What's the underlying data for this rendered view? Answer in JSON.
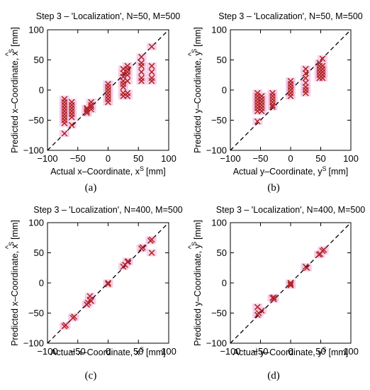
{
  "chart_data": [
    {
      "panel_label": "(a)",
      "type": "scatter",
      "title": "Step 3 – 'Localization', N=50, M=500",
      "xlabel": "Actual x–Coordinate, x",
      "xlabel_sup": "S",
      "xlabel_unit": "[mm]",
      "ylabel": "Predicted x–Coordinate, x",
      "ylabel_sup": "S",
      "ylabel_hat": "^",
      "ylabel_unit": "[mm]",
      "xlim": [
        -100,
        100
      ],
      "ylim": [
        -100,
        100
      ],
      "xticks": [
        -100,
        -50,
        0,
        50,
        100
      ],
      "yticks": [
        -100,
        -50,
        0,
        50,
        100
      ],
      "x_tick_labels": [
        "−100",
        "−50",
        "0",
        "50",
        "100"
      ],
      "y_tick_labels": [
        "−100",
        "−50",
        "0",
        "50",
        "100"
      ],
      "reference_line": "y = x (dashed)",
      "marker_color": "#b22222",
      "halo_color": "#f3c6e6",
      "points": [
        {
          "x": -72,
          "y": -72
        },
        {
          "x": -72,
          "y": -55
        },
        {
          "x": -72,
          "y": -50
        },
        {
          "x": -72,
          "y": -45
        },
        {
          "x": -72,
          "y": -40
        },
        {
          "x": -72,
          "y": -35
        },
        {
          "x": -72,
          "y": -30
        },
        {
          "x": -72,
          "y": -25
        },
        {
          "x": -72,
          "y": -20
        },
        {
          "x": -72,
          "y": -15
        },
        {
          "x": -60,
          "y": -58
        },
        {
          "x": -60,
          "y": -45
        },
        {
          "x": -60,
          "y": -40
        },
        {
          "x": -60,
          "y": -35
        },
        {
          "x": -60,
          "y": -30
        },
        {
          "x": -60,
          "y": -25
        },
        {
          "x": -60,
          "y": -20
        },
        {
          "x": -35,
          "y": -38
        },
        {
          "x": -35,
          "y": -35
        },
        {
          "x": -35,
          "y": -32
        },
        {
          "x": -35,
          "y": -30
        },
        {
          "x": -28,
          "y": -32
        },
        {
          "x": -28,
          "y": -28
        },
        {
          "x": -28,
          "y": -25
        },
        {
          "x": -28,
          "y": -20
        },
        {
          "x": 0,
          "y": 10
        },
        {
          "x": 0,
          "y": 5
        },
        {
          "x": 0,
          "y": 0
        },
        {
          "x": 0,
          "y": -5
        },
        {
          "x": 0,
          "y": -10
        },
        {
          "x": 0,
          "y": -15
        },
        {
          "x": 0,
          "y": -20
        },
        {
          "x": 25,
          "y": 35
        },
        {
          "x": 25,
          "y": 28
        },
        {
          "x": 25,
          "y": 22
        },
        {
          "x": 25,
          "y": 15
        },
        {
          "x": 25,
          "y": 10
        },
        {
          "x": 25,
          "y": 5
        },
        {
          "x": 25,
          "y": -5
        },
        {
          "x": 25,
          "y": -10
        },
        {
          "x": 32,
          "y": 40
        },
        {
          "x": 32,
          "y": 35
        },
        {
          "x": 32,
          "y": 30
        },
        {
          "x": 32,
          "y": 25
        },
        {
          "x": 32,
          "y": 15
        },
        {
          "x": 32,
          "y": -5
        },
        {
          "x": 32,
          "y": -10
        },
        {
          "x": 55,
          "y": 55
        },
        {
          "x": 55,
          "y": 45
        },
        {
          "x": 55,
          "y": 40
        },
        {
          "x": 55,
          "y": 30
        },
        {
          "x": 55,
          "y": 20
        },
        {
          "x": 55,
          "y": 15
        },
        {
          "x": 72,
          "y": 72
        },
        {
          "x": 72,
          "y": 40
        },
        {
          "x": 72,
          "y": 30
        },
        {
          "x": 72,
          "y": 20
        },
        {
          "x": 72,
          "y": 15
        }
      ]
    },
    {
      "panel_label": "(b)",
      "type": "scatter",
      "title": "Step 3 – 'Localization', N=50, M=500",
      "xlabel": "Actual y–Coordinate, y",
      "xlabel_sup": "S",
      "xlabel_unit": "[mm]",
      "ylabel": "Predicted y–Coordinate, y",
      "ylabel_sup": "S",
      "ylabel_hat": "^",
      "ylabel_unit": "[mm]",
      "xlim": [
        -100,
        100
      ],
      "ylim": [
        -100,
        100
      ],
      "xticks": [
        -100,
        -50,
        0,
        50,
        100
      ],
      "yticks": [
        -100,
        -50,
        0,
        50,
        100
      ],
      "x_tick_labels": [
        "−100",
        "−50",
        "0",
        "50",
        "100"
      ],
      "y_tick_labels": [
        "−100",
        "−50",
        "0",
        "50",
        "100"
      ],
      "reference_line": "y = x (dashed)",
      "marker_color": "#b22222",
      "halo_color": "#f3c6e6",
      "points": [
        {
          "x": -55,
          "y": -52
        },
        {
          "x": -55,
          "y": -35
        },
        {
          "x": -55,
          "y": -30
        },
        {
          "x": -55,
          "y": -25
        },
        {
          "x": -55,
          "y": -20
        },
        {
          "x": -55,
          "y": -15
        },
        {
          "x": -55,
          "y": -10
        },
        {
          "x": -55,
          "y": -5
        },
        {
          "x": -48,
          "y": -35
        },
        {
          "x": -48,
          "y": -30
        },
        {
          "x": -48,
          "y": -25
        },
        {
          "x": -48,
          "y": -20
        },
        {
          "x": -48,
          "y": -15
        },
        {
          "x": -48,
          "y": -10
        },
        {
          "x": -30,
          "y": -28
        },
        {
          "x": -30,
          "y": -25
        },
        {
          "x": -30,
          "y": -20
        },
        {
          "x": -30,
          "y": -15
        },
        {
          "x": -30,
          "y": -10
        },
        {
          "x": -30,
          "y": -5
        },
        {
          "x": 0,
          "y": 15
        },
        {
          "x": 0,
          "y": 10
        },
        {
          "x": 0,
          "y": 5
        },
        {
          "x": 0,
          "y": 0
        },
        {
          "x": 0,
          "y": -5
        },
        {
          "x": 0,
          "y": -10
        },
        {
          "x": 25,
          "y": 35
        },
        {
          "x": 25,
          "y": 28
        },
        {
          "x": 25,
          "y": 20
        },
        {
          "x": 25,
          "y": 12
        },
        {
          "x": 25,
          "y": 5
        },
        {
          "x": 25,
          "y": 0
        },
        {
          "x": 25,
          "y": -5
        },
        {
          "x": 48,
          "y": 45
        },
        {
          "x": 48,
          "y": 40
        },
        {
          "x": 48,
          "y": 35
        },
        {
          "x": 48,
          "y": 30
        },
        {
          "x": 48,
          "y": 25
        },
        {
          "x": 48,
          "y": 20
        },
        {
          "x": 53,
          "y": 52
        },
        {
          "x": 53,
          "y": 40
        },
        {
          "x": 53,
          "y": 35
        },
        {
          "x": 53,
          "y": 30
        },
        {
          "x": 53,
          "y": 25
        },
        {
          "x": 53,
          "y": 20
        }
      ]
    },
    {
      "panel_label": "(c)",
      "type": "scatter",
      "title": "Step 3 – 'Localization', N=400, M=500",
      "xlabel": "Actual x–Coordinate, x",
      "xlabel_sup": "S",
      "xlabel_unit": "[mm]",
      "ylabel": "Predicted x–Coordinate, x",
      "ylabel_sup": "S",
      "ylabel_hat": "^",
      "ylabel_unit": "[mm]",
      "xlim": [
        -100,
        100
      ],
      "ylim": [
        -100,
        100
      ],
      "xticks": [
        -100,
        -50,
        0,
        50,
        100
      ],
      "yticks": [
        -100,
        -50,
        0,
        50,
        100
      ],
      "x_tick_labels": [
        "−100",
        "−50",
        "0",
        "50",
        "100"
      ],
      "y_tick_labels": [
        "−100",
        "−50",
        "0",
        "50",
        "100"
      ],
      "reference_line": "y = x (dashed)",
      "marker_color": "#b22222",
      "halo_color": "#f3c6e6",
      "points": [
        {
          "x": -72,
          "y": -72
        },
        {
          "x": -70,
          "y": -70
        },
        {
          "x": -58,
          "y": -58
        },
        {
          "x": -56,
          "y": -56
        },
        {
          "x": -35,
          "y": -36
        },
        {
          "x": -33,
          "y": -33
        },
        {
          "x": -30,
          "y": -22
        },
        {
          "x": -30,
          "y": -28
        },
        {
          "x": -28,
          "y": -30
        },
        {
          "x": 0,
          "y": 0
        },
        {
          "x": 0,
          "y": -2
        },
        {
          "x": 25,
          "y": 27
        },
        {
          "x": 28,
          "y": 30
        },
        {
          "x": 32,
          "y": 35
        },
        {
          "x": 33,
          "y": 36
        },
        {
          "x": 55,
          "y": 57
        },
        {
          "x": 57,
          "y": 59
        },
        {
          "x": 70,
          "y": 70
        },
        {
          "x": 72,
          "y": 72
        },
        {
          "x": 72,
          "y": 50
        }
      ]
    },
    {
      "panel_label": "(d)",
      "type": "scatter",
      "title": "Step 3 – 'Localization', N=400, M=500",
      "xlabel": "Actual y–Coordinate, y",
      "xlabel_sup": "S",
      "xlabel_unit": "[mm]",
      "ylabel": "Predicted y–Coordinate, y",
      "ylabel_sup": "S",
      "ylabel_hat": "^",
      "ylabel_unit": "[mm]",
      "xlim": [
        -100,
        100
      ],
      "ylim": [
        -100,
        100
      ],
      "xticks": [
        -100,
        -50,
        0,
        50,
        100
      ],
      "yticks": [
        -100,
        -50,
        0,
        50,
        100
      ],
      "x_tick_labels": [
        "−100",
        "−50",
        "0",
        "50",
        "100"
      ],
      "y_tick_labels": [
        "−100",
        "−50",
        "0",
        "50",
        "100"
      ],
      "reference_line": "y = x (dashed)",
      "marker_color": "#b22222",
      "halo_color": "#f3c6e6",
      "points": [
        {
          "x": -55,
          "y": -40
        },
        {
          "x": -55,
          "y": -53
        },
        {
          "x": -53,
          "y": -50
        },
        {
          "x": -48,
          "y": -46
        },
        {
          "x": -30,
          "y": -25
        },
        {
          "x": -28,
          "y": -27
        },
        {
          "x": -28,
          "y": -24
        },
        {
          "x": 0,
          "y": 0
        },
        {
          "x": 0,
          "y": -2
        },
        {
          "x": 0,
          "y": -4
        },
        {
          "x": 25,
          "y": 27
        },
        {
          "x": 27,
          "y": 25
        },
        {
          "x": 47,
          "y": 47
        },
        {
          "x": 49,
          "y": 48
        },
        {
          "x": 53,
          "y": 53
        },
        {
          "x": 55,
          "y": 55
        }
      ]
    }
  ]
}
